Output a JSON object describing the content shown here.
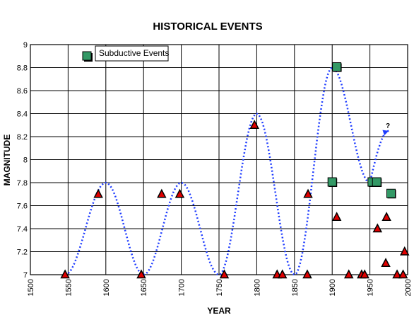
{
  "chart_data": {
    "type": "scatter",
    "title": "HISTORICAL EVENTS",
    "xlabel": "YEAR",
    "ylabel": "MAGNITUDE",
    "xlim": [
      1500,
      2000
    ],
    "ylim": [
      7,
      9
    ],
    "xticks": [
      1500,
      1550,
      1600,
      1650,
      1700,
      1750,
      1800,
      1850,
      1900,
      1950,
      2000
    ],
    "yticks": [
      7,
      7.2,
      7.4,
      7.6,
      7.8,
      8,
      8.2,
      8.4,
      8.6,
      8.8,
      9
    ],
    "ytick_labels": [
      "7",
      "7.2",
      "7.4",
      "7.6",
      "7.8",
      "8",
      "8.2",
      "8.4",
      "8.6",
      "8.8",
      "9"
    ],
    "grid": true,
    "legend": {
      "label": "Subductive Events",
      "placement": "top-left"
    },
    "annotation": "?",
    "series": [
      {
        "marker": "triangle",
        "color": "#e00000",
        "points": [
          [
            1546,
            7.0
          ],
          [
            1590,
            7.7
          ],
          [
            1647,
            7.0
          ],
          [
            1674,
            7.7
          ],
          [
            1698,
            7.7
          ],
          [
            1757,
            7.0
          ],
          [
            1797,
            8.3
          ],
          [
            1827,
            7.0
          ],
          [
            1834,
            7.0
          ],
          [
            1867,
            7.0
          ],
          [
            1868,
            7.7
          ],
          [
            1906,
            7.5
          ],
          [
            1922,
            7.0
          ],
          [
            1939,
            7.0
          ],
          [
            1943,
            7.0
          ],
          [
            1960,
            7.4
          ],
          [
            1971,
            7.1
          ],
          [
            1972,
            7.5
          ],
          [
            1986,
            7.0
          ],
          [
            1994,
            7.0
          ],
          [
            1996,
            7.2
          ]
        ]
      },
      {
        "name": "Subductive Events",
        "marker": "square",
        "color": "#339966",
        "points": [
          [
            1900,
            7.8
          ],
          [
            1906,
            8.8
          ],
          [
            1953,
            7.8
          ],
          [
            1959,
            7.8
          ],
          [
            1978,
            7.7
          ]
        ]
      },
      {
        "type": "line",
        "style": "dotted",
        "color": "#1e3cff",
        "points": [
          [
            1546,
            7.0
          ],
          [
            1600,
            7.8
          ],
          [
            1650,
            7.0
          ],
          [
            1700,
            7.8
          ],
          [
            1750,
            7.0
          ],
          [
            1800,
            8.4
          ],
          [
            1850,
            7.0
          ],
          [
            1900,
            8.8
          ],
          [
            1950,
            7.8
          ],
          [
            1975,
            8.25
          ]
        ]
      }
    ]
  }
}
